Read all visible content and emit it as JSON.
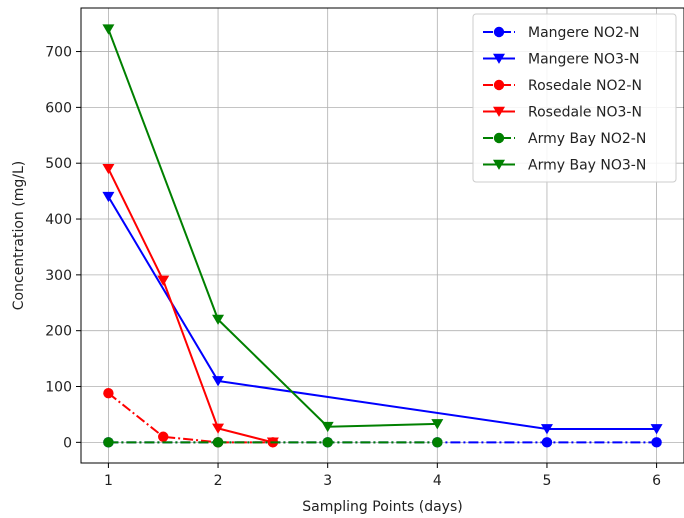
{
  "chart_data": {
    "type": "line",
    "xlabel": "Sampling Points (days)",
    "ylabel": "Concentration (mg/L)",
    "xlim": [
      0.75,
      6.25
    ],
    "ylim": [
      -37,
      778
    ],
    "xticks": [
      1,
      2,
      3,
      4,
      5,
      6
    ],
    "yticks": [
      0,
      100,
      200,
      300,
      400,
      500,
      600,
      700
    ],
    "grid": true,
    "legend_position": "top-right",
    "series": [
      {
        "name": "Mangere NO2-N",
        "color": "#0000ff",
        "linestyle": "dashdot",
        "marker": "circle",
        "x": [
          1,
          2,
          3,
          4,
          5,
          6
        ],
        "y": [
          0,
          0,
          0,
          0,
          0,
          0
        ]
      },
      {
        "name": "Mangere NO3-N",
        "color": "#0000ff",
        "linestyle": "solid",
        "marker": "triangle-down",
        "x": [
          1,
          2,
          5,
          6
        ],
        "y": [
          440,
          110,
          24,
          24
        ]
      },
      {
        "name": "Rosedale NO2-N",
        "color": "#ff0000",
        "linestyle": "dashdot",
        "marker": "circle",
        "x": [
          1,
          1.5,
          2,
          2.5
        ],
        "y": [
          88,
          10,
          0,
          0
        ]
      },
      {
        "name": "Rosedale NO3-N",
        "color": "#ff0000",
        "linestyle": "solid",
        "marker": "triangle-down",
        "x": [
          1,
          1.5,
          2,
          2.5
        ],
        "y": [
          490,
          290,
          25,
          0
        ]
      },
      {
        "name": "Army Bay NO2-N",
        "color": "#008000",
        "linestyle": "dashdot",
        "marker": "circle",
        "x": [
          1,
          2,
          3,
          4
        ],
        "y": [
          0,
          0,
          0,
          0
        ]
      },
      {
        "name": "Army Bay NO3-N",
        "color": "#008000",
        "linestyle": "solid",
        "marker": "triangle-down",
        "x": [
          1,
          2,
          3,
          4
        ],
        "y": [
          740,
          220,
          28,
          33
        ]
      }
    ]
  }
}
